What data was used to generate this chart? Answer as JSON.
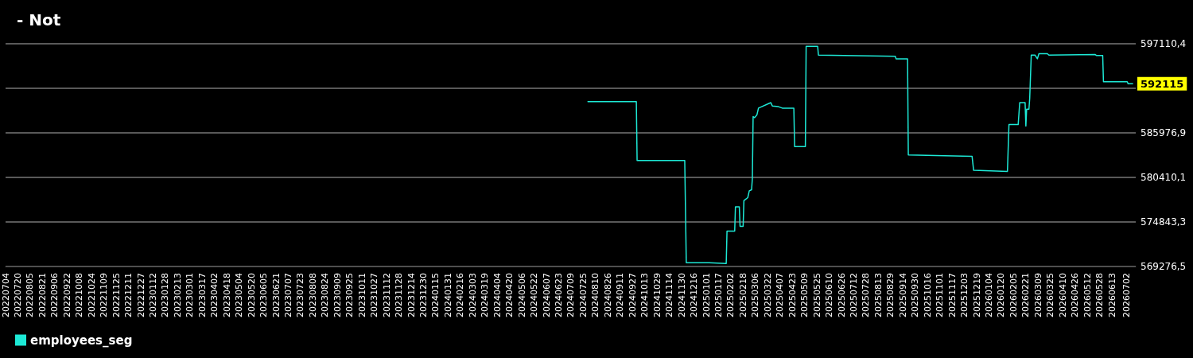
{
  "chart_data": {
    "type": "line",
    "title": "- Not",
    "x": [
      "2024-07-31",
      "2024-10-02",
      "2024-10-03",
      "2024-12-04",
      "2024-12-06",
      "2025-01-05",
      "2025-01-27",
      "2025-01-28",
      "2025-02-07",
      "2025-02-08",
      "2025-02-13",
      "2025-02-14",
      "2025-02-18",
      "2025-02-19",
      "2025-02-24",
      "2025-02-26",
      "2025-03-01",
      "2025-03-02",
      "2025-03-03",
      "2025-03-05",
      "2025-03-08",
      "2025-03-10",
      "2025-03-26",
      "2025-03-28",
      "2025-04-05",
      "2025-04-10",
      "2025-04-25",
      "2025-04-26",
      "2025-05-10",
      "2025-05-11",
      "2025-05-26",
      "2025-05-27",
      "2025-09-04",
      "2025-09-05",
      "2025-09-20",
      "2025-09-21",
      "2025-12-13",
      "2025-12-15",
      "2026-01-28",
      "2026-01-30",
      "2026-02-11",
      "2026-02-13",
      "2026-02-20",
      "2026-02-21",
      "2026-02-22",
      "2026-02-25",
      "2026-02-26",
      "2026-02-28",
      "2026-03-05",
      "2026-03-08",
      "2026-03-10",
      "2026-03-21",
      "2026-03-23",
      "2026-05-22",
      "2026-05-24",
      "2026-06-01",
      "2026-06-02",
      "2026-07-03",
      "2026-07-04",
      "2026-07-10"
    ],
    "series": [
      {
        "name": "employees_seg",
        "color": "#1de9d6",
        "values": [
          589884,
          589884,
          582528,
          582528,
          569744,
          569744,
          569644,
          573710,
          573710,
          576732,
          576732,
          574307,
          574307,
          577508,
          577875,
          578732,
          578871,
          580252,
          588015,
          587876,
          588243,
          589069,
          589755,
          589338,
          589249,
          589069,
          589069,
          584267,
          584267,
          596783,
          596783,
          595689,
          595550,
          595232,
          595232,
          583213,
          583034,
          581294,
          581165,
          587011,
          587011,
          589755,
          589755,
          586822,
          588930,
          588930,
          590300,
          595689,
          595689,
          595232,
          595868,
          595868,
          595689,
          595779,
          595639,
          595639,
          592359,
          592359,
          592115,
          592115
        ]
      }
    ],
    "xlim": [
      "2022-07-04",
      "2026-07-14"
    ],
    "xticks": [
      {
        "value": "2022-07-04",
        "label": "20220704"
      },
      {
        "value": "2022-07-20",
        "label": "20220720"
      },
      {
        "value": "2022-08-05",
        "label": "20220805"
      },
      {
        "value": "2022-08-21",
        "label": "20220821"
      },
      {
        "value": "2022-09-06",
        "label": "20220906"
      },
      {
        "value": "2022-09-22",
        "label": "20220922"
      },
      {
        "value": "2022-10-08",
        "label": "20221008"
      },
      {
        "value": "2022-10-24",
        "label": "20221024"
      },
      {
        "value": "2022-11-09",
        "label": "20221109"
      },
      {
        "value": "2022-11-25",
        "label": "20221125"
      },
      {
        "value": "2022-12-11",
        "label": "20221211"
      },
      {
        "value": "2022-12-27",
        "label": "20221227"
      },
      {
        "value": "2023-01-12",
        "label": "20230112"
      },
      {
        "value": "2023-01-28",
        "label": "20230128"
      },
      {
        "value": "2023-02-13",
        "label": "20230213"
      },
      {
        "value": "2023-03-01",
        "label": "20230301"
      },
      {
        "value": "2023-03-17",
        "label": "20230317"
      },
      {
        "value": "2023-04-02",
        "label": "20230402"
      },
      {
        "value": "2023-04-18",
        "label": "20230418"
      },
      {
        "value": "2023-05-04",
        "label": "20230504"
      },
      {
        "value": "2023-05-20",
        "label": "20230520"
      },
      {
        "value": "2023-06-05",
        "label": "20230605"
      },
      {
        "value": "2023-06-21",
        "label": "20230621"
      },
      {
        "value": "2023-07-07",
        "label": "20230707"
      },
      {
        "value": "2023-07-23",
        "label": "20230723"
      },
      {
        "value": "2023-08-08",
        "label": "20230808"
      },
      {
        "value": "2023-08-24",
        "label": "20230824"
      },
      {
        "value": "2023-09-09",
        "label": "20230909"
      },
      {
        "value": "2023-09-25",
        "label": "20230925"
      },
      {
        "value": "2023-10-11",
        "label": "20231011"
      },
      {
        "value": "2023-10-27",
        "label": "20231027"
      },
      {
        "value": "2023-11-12",
        "label": "20231112"
      },
      {
        "value": "2023-11-28",
        "label": "20231128"
      },
      {
        "value": "2023-12-14",
        "label": "20231214"
      },
      {
        "value": "2023-12-30",
        "label": "20231230"
      },
      {
        "value": "2024-01-15",
        "label": "20240115"
      },
      {
        "value": "2024-01-31",
        "label": "20240131"
      },
      {
        "value": "2024-02-16",
        "label": "20240216"
      },
      {
        "value": "2024-03-03",
        "label": "20240303"
      },
      {
        "value": "2024-03-19",
        "label": "20240319"
      },
      {
        "value": "2024-04-04",
        "label": "20240404"
      },
      {
        "value": "2024-04-20",
        "label": "20240420"
      },
      {
        "value": "2024-05-06",
        "label": "20240506"
      },
      {
        "value": "2024-05-22",
        "label": "20240522"
      },
      {
        "value": "2024-06-07",
        "label": "20240607"
      },
      {
        "value": "2024-06-23",
        "label": "20240623"
      },
      {
        "value": "2024-07-09",
        "label": "20240709"
      },
      {
        "value": "2024-07-25",
        "label": "20240725"
      },
      {
        "value": "2024-08-10",
        "label": "20240810"
      },
      {
        "value": "2024-08-26",
        "label": "20240826"
      },
      {
        "value": "2024-09-11",
        "label": "20240911"
      },
      {
        "value": "2024-09-27",
        "label": "20240927"
      },
      {
        "value": "2024-10-13",
        "label": "20241013"
      },
      {
        "value": "2024-10-29",
        "label": "20241029"
      },
      {
        "value": "2024-11-14",
        "label": "20241114"
      },
      {
        "value": "2024-11-30",
        "label": "20241130"
      },
      {
        "value": "2024-12-16",
        "label": "20241216"
      },
      {
        "value": "2025-01-01",
        "label": "20250101"
      },
      {
        "value": "2025-01-17",
        "label": "20250117"
      },
      {
        "value": "2025-02-02",
        "label": "20250202"
      },
      {
        "value": "2025-02-18",
        "label": "20250218"
      },
      {
        "value": "2025-03-06",
        "label": "20250306"
      },
      {
        "value": "2025-03-22",
        "label": "20250322"
      },
      {
        "value": "2025-04-07",
        "label": "20250407"
      },
      {
        "value": "2025-04-23",
        "label": "20250423"
      },
      {
        "value": "2025-05-09",
        "label": "20250509"
      },
      {
        "value": "2025-05-25",
        "label": "20250525"
      },
      {
        "value": "2025-06-10",
        "label": "20250610"
      },
      {
        "value": "2025-06-26",
        "label": "20250626"
      },
      {
        "value": "2025-07-12",
        "label": "20250712"
      },
      {
        "value": "2025-07-28",
        "label": "20250728"
      },
      {
        "value": "2025-08-13",
        "label": "20250813"
      },
      {
        "value": "2025-08-29",
        "label": "20250829"
      },
      {
        "value": "2025-09-14",
        "label": "20250914"
      },
      {
        "value": "2025-09-30",
        "label": "20250930"
      },
      {
        "value": "2025-10-16",
        "label": "20251016"
      },
      {
        "value": "2025-11-01",
        "label": "20251101"
      },
      {
        "value": "2025-11-17",
        "label": "20251117"
      },
      {
        "value": "2025-12-03",
        "label": "20251203"
      },
      {
        "value": "2025-12-19",
        "label": "20251219"
      },
      {
        "value": "2026-01-04",
        "label": "20260104"
      },
      {
        "value": "2026-01-20",
        "label": "20260120"
      },
      {
        "value": "2026-02-05",
        "label": "20260205"
      },
      {
        "value": "2026-02-21",
        "label": "20260221"
      },
      {
        "value": "2026-03-09",
        "label": "20260309"
      },
      {
        "value": "2026-03-25",
        "label": "20260325"
      },
      {
        "value": "2026-04-10",
        "label": "20260410"
      },
      {
        "value": "2026-04-26",
        "label": "20260426"
      },
      {
        "value": "2026-05-12",
        "label": "20260512"
      },
      {
        "value": "2026-05-28",
        "label": "20260528"
      },
      {
        "value": "2026-06-13",
        "label": "20260613"
      },
      {
        "value": "2026-07-02",
        "label": "20260702"
      }
    ],
    "ylim": [
      569276.5,
      597110.4
    ],
    "yticks": [
      {
        "value": 569276.5,
        "label": "569276,5"
      },
      {
        "value": 574843.3,
        "label": "574843,3"
      },
      {
        "value": 580410.1,
        "label": "580410,1"
      },
      {
        "value": 585976.9,
        "label": "585976,9"
      },
      {
        "value": 591543.7,
        "label": null
      },
      {
        "value": 597110.4,
        "label": "597110,4"
      }
    ],
    "annotations": [
      {
        "text": "592115",
        "x": "2026-07-10",
        "y": 592115
      }
    ],
    "grid": "y",
    "legend": "bottom left",
    "marker": "none",
    "line_style": "solid"
  }
}
